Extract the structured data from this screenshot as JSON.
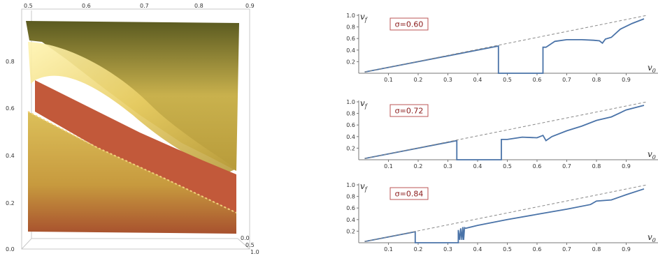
{
  "surface3d": {
    "type": "surface",
    "x_ticks": [
      "0.5",
      "0.6",
      "0.7",
      "0.8",
      "0.9"
    ],
    "y_ticks": [
      "0.0",
      "0.2",
      "0.4",
      "0.6",
      "0.8"
    ],
    "z_ticks": [
      "0.0",
      "0.5",
      "1.0"
    ]
  },
  "chart_data": [
    {
      "type": "line",
      "annotation": "σ=0.60",
      "xlabel": "v0",
      "ylabel": "vf",
      "xlim": [
        0,
        1.0
      ],
      "ylim": [
        0,
        1.0
      ],
      "x_ticks": [
        "0.1",
        "0.2",
        "0.3",
        "0.4",
        "0.5",
        "0.6",
        "0.7",
        "0.8",
        "0.9"
      ],
      "y_ticks": [
        "0.2",
        "0.4",
        "0.6",
        "0.8",
        "1.0"
      ],
      "series": [
        {
          "style": "solid",
          "color": "#4a73a8",
          "x": [
            0.02,
            0.47,
            0.47,
            0.62,
            0.62,
            0.63,
            0.66,
            0.7,
            0.75,
            0.79,
            0.81,
            0.82,
            0.83,
            0.85,
            0.88,
            0.92,
            0.96
          ],
          "y": [
            0.02,
            0.47,
            0.0,
            0.0,
            0.45,
            0.45,
            0.55,
            0.58,
            0.58,
            0.57,
            0.56,
            0.52,
            0.59,
            0.62,
            0.76,
            0.86,
            0.94
          ]
        },
        {
          "style": "dashed",
          "color": "#888888",
          "x": [
            0.02,
            0.97
          ],
          "y": [
            0.02,
            1.0
          ]
        }
      ]
    },
    {
      "type": "line",
      "annotation": "σ=0.72",
      "xlabel": "v0",
      "ylabel": "vf",
      "xlim": [
        0,
        1.0
      ],
      "ylim": [
        0,
        1.0
      ],
      "x_ticks": [
        "0.1",
        "0.2",
        "0.3",
        "0.4",
        "0.5",
        "0.6",
        "0.7",
        "0.8",
        "0.9"
      ],
      "y_ticks": [
        "0.2",
        "0.4",
        "0.6",
        "0.8",
        "1.0"
      ],
      "series": [
        {
          "style": "solid",
          "color": "#4a73a8",
          "x": [
            0.02,
            0.33,
            0.33,
            0.48,
            0.48,
            0.5,
            0.55,
            0.6,
            0.62,
            0.63,
            0.65,
            0.7,
            0.75,
            0.8,
            0.85,
            0.9,
            0.96
          ],
          "y": [
            0.02,
            0.33,
            0.0,
            0.0,
            0.35,
            0.35,
            0.39,
            0.38,
            0.42,
            0.33,
            0.4,
            0.5,
            0.58,
            0.68,
            0.74,
            0.86,
            0.94
          ]
        },
        {
          "style": "dashed",
          "color": "#888888",
          "x": [
            0.02,
            0.97
          ],
          "y": [
            0.02,
            1.0
          ]
        }
      ]
    },
    {
      "type": "line",
      "annotation": "σ=0.84",
      "xlabel": "v0",
      "ylabel": "vf",
      "xlim": [
        0,
        1.0
      ],
      "ylim": [
        0,
        1.0
      ],
      "x_ticks": [
        "0.1",
        "0.2",
        "0.3",
        "0.4",
        "0.5",
        "0.6",
        "0.7",
        "0.8",
        "0.9"
      ],
      "y_ticks": [
        "0.2",
        "0.4",
        "0.6",
        "0.8",
        "1.0"
      ],
      "series": [
        {
          "style": "solid",
          "color": "#4a73a8",
          "x": [
            0.02,
            0.19,
            0.19,
            0.335,
            0.335,
            0.34,
            0.343,
            0.347,
            0.35,
            0.353,
            0.356,
            0.36,
            0.4,
            0.5,
            0.6,
            0.7,
            0.78,
            0.8,
            0.85,
            0.9,
            0.96
          ],
          "y": [
            0.02,
            0.19,
            0.0,
            0.0,
            0.22,
            0.05,
            0.25,
            0.05,
            0.27,
            0.05,
            0.26,
            0.25,
            0.3,
            0.4,
            0.49,
            0.58,
            0.66,
            0.72,
            0.74,
            0.83,
            0.93
          ]
        },
        {
          "style": "dashed",
          "color": "#888888",
          "x": [
            0.02,
            0.97
          ],
          "y": [
            0.02,
            1.0
          ]
        }
      ]
    }
  ]
}
